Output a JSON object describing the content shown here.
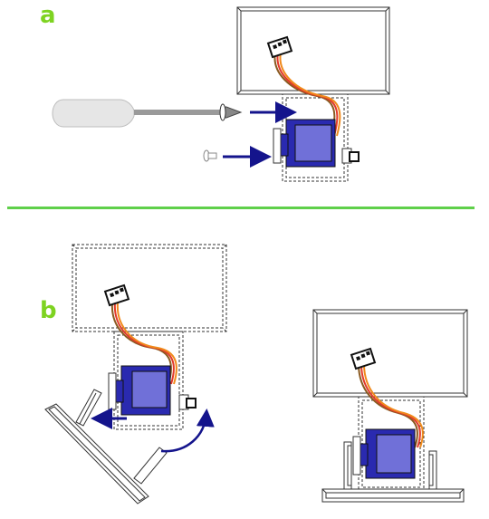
{
  "steps": [
    {
      "label": "a"
    },
    {
      "label": "b"
    }
  ],
  "colors": {
    "step_label": "#7ed321",
    "divider": "#5fd04a",
    "arrow": "#14148c",
    "servo_body": "#2a2ab0",
    "servo_panel": "#7070d8",
    "wire_orange": "#f08a1c",
    "wire_red": "#e23a2a",
    "wire_brown": "#8a5a20",
    "tool_handle": "#e6e6e6",
    "tool_shaft": "#9a9a9a",
    "outline": "#333333"
  },
  "icons": [
    "screwdriver-icon",
    "screw-icon",
    "servo-motor-icon",
    "servo-connector-icon",
    "bracket-icon",
    "rotate-arrow-icon"
  ]
}
